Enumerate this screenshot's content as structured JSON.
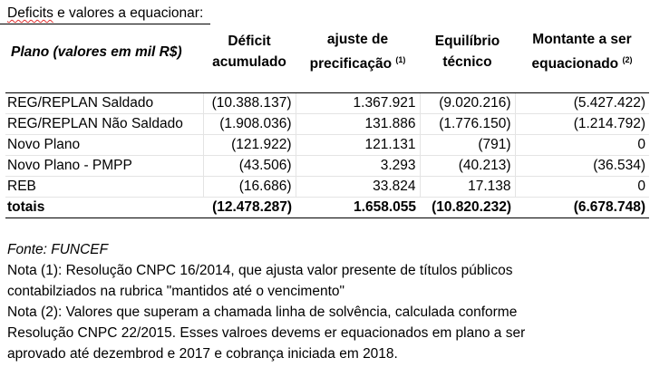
{
  "caption": {
    "word": "Deficits",
    "rest": " e valores a equacionar:"
  },
  "table": {
    "headers": {
      "plano": "Plano (valores em mil R$)",
      "deficit": [
        "Déficit",
        "acumulado"
      ],
      "ajuste": [
        "ajuste de",
        "precificação"
      ],
      "ajuste_note": "(1)",
      "equilibrio": [
        "Equilíbrio",
        "técnico"
      ],
      "montante": [
        "Montante a ser",
        "equacionado"
      ],
      "montante_note": "(2)"
    },
    "rows": [
      {
        "plano": "REG/REPLAN Saldado",
        "deficit": "(10.388.137)",
        "ajuste": "1.367.921",
        "equilibrio": "(9.020.216)",
        "montante": "(5.427.422)"
      },
      {
        "plano": "REG/REPLAN Não Saldado",
        "deficit": "(1.908.036)",
        "ajuste": "131.886",
        "equilibrio": "(1.776.150)",
        "montante": "(1.214.792)"
      },
      {
        "plano": "Novo Plano",
        "deficit": "(121.922)",
        "ajuste": "121.131",
        "equilibrio": "(791)",
        "montante": "0"
      },
      {
        "plano": "Novo Plano - PMPP",
        "deficit": "(43.506)",
        "ajuste": "3.293",
        "equilibrio": "(40.213)",
        "montante": "(36.534)"
      },
      {
        "plano": "REB",
        "deficit": "(16.686)",
        "ajuste": "33.824",
        "equilibrio": "17.138",
        "montante": "0"
      }
    ],
    "total": {
      "plano": "totais",
      "deficit": "(12.478.287)",
      "ajuste": "1.658.055",
      "equilibrio": "(10.820.232)",
      "montante": "(6.678.748)"
    }
  },
  "notes": {
    "fonte": "Fonte: FUNCEF",
    "nota1_l1": "Nota (1): Resolução CNPC 16/2014, que ajusta valor presente de títulos públicos",
    "nota1_l2": "contabilziados na rubrica \"mantidos até o vencimento\"",
    "nota2_l1": "Nota (2): Valores que superam a chamada linha de solvência, calculada conforme",
    "nota2_l2": "Resolução CNPC 22/2015. Esses valroes devems er equacionados em plano a ser",
    "nota2_l3": "aprovado até dezembrod e 2017 e cobrança iniciada em 2018."
  }
}
